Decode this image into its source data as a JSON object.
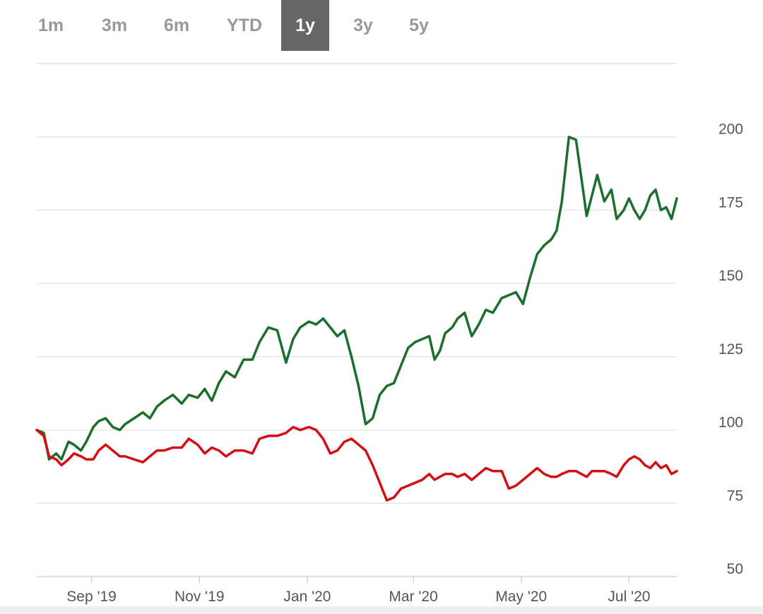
{
  "range_selector": {
    "buttons": [
      {
        "label": "1m",
        "active": false
      },
      {
        "label": "3m",
        "active": false
      },
      {
        "label": "6m",
        "active": false
      },
      {
        "label": "YTD",
        "active": false
      },
      {
        "label": "1y",
        "active": true
      },
      {
        "label": "3y",
        "active": false
      },
      {
        "label": "5y",
        "active": false
      }
    ]
  },
  "chart_data": {
    "type": "line",
    "title": "",
    "xlabel": "",
    "ylabel": "",
    "x_range": [
      "2019-08-01",
      "2020-07-28"
    ],
    "ylim": [
      50,
      225
    ],
    "y_ticks": [
      50,
      75,
      100,
      125,
      150,
      175,
      200
    ],
    "x_ticks": [
      {
        "date": "2019-09-01",
        "label": "Sep '19"
      },
      {
        "date": "2019-11-01",
        "label": "Nov '19"
      },
      {
        "date": "2020-01-01",
        "label": "Jan '20"
      },
      {
        "date": "2020-03-01",
        "label": "Mar '20"
      },
      {
        "date": "2020-05-01",
        "label": "May '20"
      },
      {
        "date": "2020-07-01",
        "label": "Jul '20"
      }
    ],
    "grid": true,
    "legend": "none",
    "series": [
      {
        "color": "#1b6e2b",
        "x": [
          "2019-08-01",
          "2019-08-05",
          "2019-08-08",
          "2019-08-12",
          "2019-08-15",
          "2019-08-19",
          "2019-08-22",
          "2019-08-26",
          "2019-08-29",
          "2019-09-02",
          "2019-09-05",
          "2019-09-09",
          "2019-09-13",
          "2019-09-17",
          "2019-09-20",
          "2019-09-25",
          "2019-09-30",
          "2019-10-04",
          "2019-10-08",
          "2019-10-12",
          "2019-10-17",
          "2019-10-22",
          "2019-10-26",
          "2019-10-31",
          "2019-11-04",
          "2019-11-08",
          "2019-11-12",
          "2019-11-16",
          "2019-11-21",
          "2019-11-26",
          "2019-12-01",
          "2019-12-05",
          "2019-12-10",
          "2019-12-15",
          "2019-12-20",
          "2019-12-24",
          "2019-12-28",
          "2020-01-02",
          "2020-01-06",
          "2020-01-10",
          "2020-01-14",
          "2020-01-18",
          "2020-01-22",
          "2020-01-26",
          "2020-01-30",
          "2020-02-03",
          "2020-02-07",
          "2020-02-11",
          "2020-02-15",
          "2020-02-19",
          "2020-02-23",
          "2020-02-27",
          "2020-03-02",
          "2020-03-06",
          "2020-03-10",
          "2020-03-13",
          "2020-03-16",
          "2020-03-19",
          "2020-03-23",
          "2020-03-26",
          "2020-03-30",
          "2020-04-03",
          "2020-04-07",
          "2020-04-11",
          "2020-04-15",
          "2020-04-20",
          "2020-04-24",
          "2020-04-28",
          "2020-05-02",
          "2020-05-06",
          "2020-05-10",
          "2020-05-14",
          "2020-05-18",
          "2020-05-21",
          "2020-05-24",
          "2020-05-28",
          "2020-06-01",
          "2020-06-04",
          "2020-06-07",
          "2020-06-10",
          "2020-06-13",
          "2020-06-17",
          "2020-06-21",
          "2020-06-24",
          "2020-06-28",
          "2020-07-01",
          "2020-07-04",
          "2020-07-07",
          "2020-07-10",
          "2020-07-13",
          "2020-07-16",
          "2020-07-19",
          "2020-07-22",
          "2020-07-25",
          "2020-07-28"
        ],
        "y": [
          100,
          99,
          90,
          92,
          90,
          96,
          95,
          93,
          96,
          101,
          103,
          104,
          101,
          100,
          102,
          104,
          106,
          104,
          108,
          110,
          112,
          109,
          112,
          111,
          114,
          110,
          116,
          120,
          118,
          124,
          124,
          130,
          135,
          134,
          123,
          131,
          135,
          137,
          136,
          138,
          135,
          132,
          134,
          125,
          115,
          102,
          104,
          112,
          115,
          116,
          122,
          128,
          130,
          131,
          132,
          124,
          127,
          133,
          135,
          138,
          140,
          132,
          136,
          141,
          140,
          145,
          146,
          147,
          143,
          152,
          160,
          163,
          165,
          168,
          178,
          200,
          199,
          186,
          173,
          180,
          187,
          178,
          182,
          172,
          175,
          179,
          175,
          172,
          175,
          180,
          182,
          175,
          176,
          172,
          179
        ]
      },
      {
        "color": "#d40f14",
        "x": [
          "2019-08-01",
          "2019-08-05",
          "2019-08-08",
          "2019-08-12",
          "2019-08-15",
          "2019-08-19",
          "2019-08-22",
          "2019-08-26",
          "2019-08-29",
          "2019-09-02",
          "2019-09-05",
          "2019-09-09",
          "2019-09-13",
          "2019-09-17",
          "2019-09-20",
          "2019-09-25",
          "2019-09-30",
          "2019-10-04",
          "2019-10-08",
          "2019-10-12",
          "2019-10-17",
          "2019-10-22",
          "2019-10-26",
          "2019-10-31",
          "2019-11-04",
          "2019-11-08",
          "2019-11-12",
          "2019-11-16",
          "2019-11-21",
          "2019-11-26",
          "2019-12-01",
          "2019-12-05",
          "2019-12-10",
          "2019-12-15",
          "2019-12-20",
          "2019-12-24",
          "2019-12-28",
          "2020-01-02",
          "2020-01-06",
          "2020-01-10",
          "2020-01-14",
          "2020-01-18",
          "2020-01-22",
          "2020-01-26",
          "2020-01-30",
          "2020-02-03",
          "2020-02-07",
          "2020-02-11",
          "2020-02-15",
          "2020-02-19",
          "2020-02-23",
          "2020-02-27",
          "2020-03-02",
          "2020-03-06",
          "2020-03-10",
          "2020-03-13",
          "2020-03-16",
          "2020-03-19",
          "2020-03-23",
          "2020-03-26",
          "2020-03-30",
          "2020-04-03",
          "2020-04-07",
          "2020-04-11",
          "2020-04-15",
          "2020-04-20",
          "2020-04-24",
          "2020-04-28",
          "2020-05-02",
          "2020-05-06",
          "2020-05-10",
          "2020-05-14",
          "2020-05-18",
          "2020-05-21",
          "2020-05-24",
          "2020-05-28",
          "2020-06-01",
          "2020-06-04",
          "2020-06-07",
          "2020-06-10",
          "2020-06-13",
          "2020-06-17",
          "2020-06-21",
          "2020-06-24",
          "2020-06-28",
          "2020-07-01",
          "2020-07-04",
          "2020-07-07",
          "2020-07-10",
          "2020-07-13",
          "2020-07-16",
          "2020-07-19",
          "2020-07-22",
          "2020-07-25",
          "2020-07-28"
        ],
        "y": [
          100,
          98,
          91,
          90,
          88,
          90,
          92,
          91,
          90,
          90,
          93,
          95,
          93,
          91,
          91,
          90,
          89,
          91,
          93,
          93,
          94,
          94,
          97,
          95,
          92,
          94,
          93,
          91,
          93,
          93,
          92,
          97,
          98,
          98,
          99,
          101,
          100,
          101,
          100,
          97,
          92,
          93,
          96,
          97,
          95,
          93,
          88,
          82,
          76,
          77,
          80,
          81,
          82,
          83,
          85,
          83,
          84,
          85,
          85,
          84,
          85,
          83,
          85,
          87,
          86,
          86,
          80,
          81,
          83,
          85,
          87,
          85,
          84,
          84,
          85,
          86,
          86,
          85,
          84,
          86,
          86,
          86,
          85,
          84,
          88,
          90,
          91,
          90,
          88,
          87,
          89,
          87,
          88,
          85,
          86
        ]
      }
    ]
  }
}
